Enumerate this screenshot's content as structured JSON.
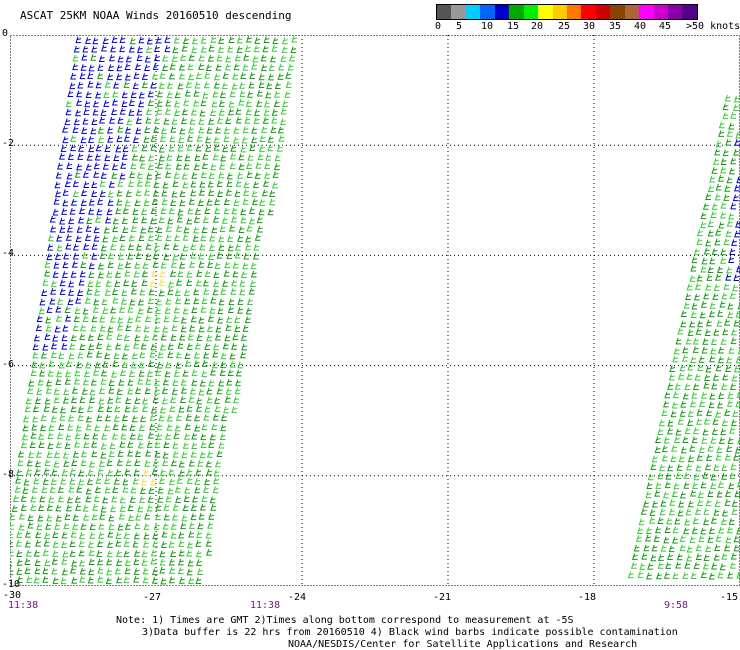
{
  "title": "ASCAT 25KM NOAA Winds 20160510 descending",
  "map": {
    "lon_range": [
      -30,
      -15
    ],
    "lat_range": [
      0,
      -10
    ],
    "x_ticks": [
      "-30",
      "-27",
      "-24",
      "-21",
      "-18",
      "-15"
    ],
    "y_ticks": [
      "0",
      "-2",
      "-4",
      "-6",
      "-8",
      "-10"
    ],
    "grid": "dotted",
    "swaths": [
      {
        "name": "west-swath",
        "time": "11:38",
        "second_time": "11:38"
      },
      {
        "name": "east-swath",
        "time": "9:58"
      }
    ]
  },
  "colorbar": {
    "labels": [
      "0",
      "5",
      "10",
      "15",
      "20",
      "25",
      "30",
      "35",
      "40",
      "45",
      ">50 knots"
    ],
    "colors": [
      "#555555",
      "#999999",
      "#00ccff",
      "#0066ff",
      "#0000cc",
      "#00aa00",
      "#00ee00",
      "#ffff00",
      "#ffcc00",
      "#ff7700",
      "#ff0000",
      "#cc0000",
      "#884400",
      "#aa6633",
      "#ff00ff",
      "#cc00cc",
      "#8800aa",
      "#550088"
    ]
  },
  "notes": {
    "line1": "Note: 1) Times are GMT 2)Times along bottom correspond to measurement at -5S",
    "line2": "3)Data buffer is 22 hrs from 20160510 4) Black wind barbs indicate possible contamination",
    "line3": "NOAA/NESDIS/Center for Satellite Applications and Research"
  },
  "colors": {
    "barb_green_light": "#33cc33",
    "barb_green_dark": "#119911",
    "barb_blue": "#0000cc",
    "barb_yellow": "#ffdd44",
    "time_label": "#6a1a7a"
  }
}
